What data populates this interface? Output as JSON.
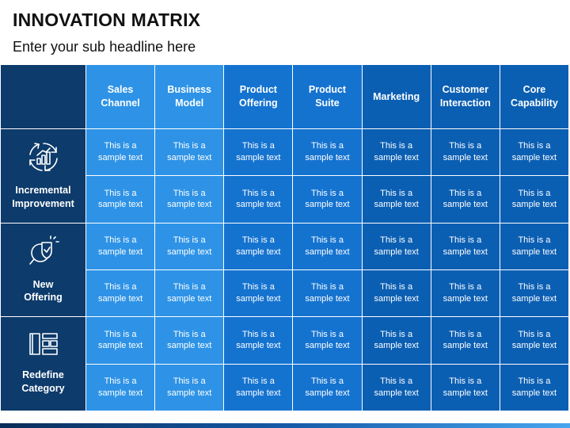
{
  "title": "INNOVATION MATRIX",
  "subtitle": "Enter your sub headline here",
  "columns": [
    "Sales\nChannel",
    "Business\nModel",
    "Product\nOffering",
    "Product\nSuite",
    "Marketing",
    "Customer\nInteraction",
    "Core\nCapability"
  ],
  "rows": [
    {
      "label": "Incremental\nImprovement",
      "icon": "cycle-arrows-icon"
    },
    {
      "label": "New\nOffering",
      "icon": "magnifier-shield-icon"
    },
    {
      "label": "Redefine\nCategory",
      "icon": "layout-blocks-icon"
    }
  ],
  "cell_text": "This is a\nsample text",
  "colors": {
    "dark_navy": "#0d3b6b",
    "light_blue": "#2e93e6",
    "mid_blue": "#1573d0",
    "deep_blue": "#0b5fb3"
  }
}
